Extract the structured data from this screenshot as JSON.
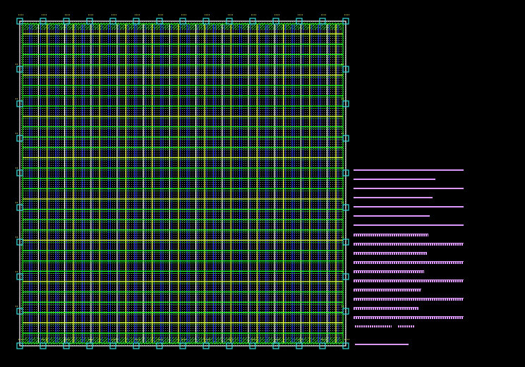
{
  "layout": {
    "background": "#000000",
    "colors": {
      "metal_horizontal": "#22ff22",
      "metal_horizontal_alt": "#ccff33",
      "metal_vertical_blue": "#2233ff",
      "metal_vertical_white": "#ffffff",
      "metal_vertical_yellow": "#ffff44",
      "boundary": "#ffffff",
      "pad": "#33dddd",
      "pad_label": "#ffff66",
      "fill_hatch": "#22cc22",
      "legend": "#dd99ff"
    },
    "horizontal_strap_count": 30,
    "vertical_strap_count": 36,
    "pad_icons_top": 15,
    "pad_icons_side": 8
  },
  "legend": {
    "solid_lines": 7,
    "dashed_lines": 10
  }
}
